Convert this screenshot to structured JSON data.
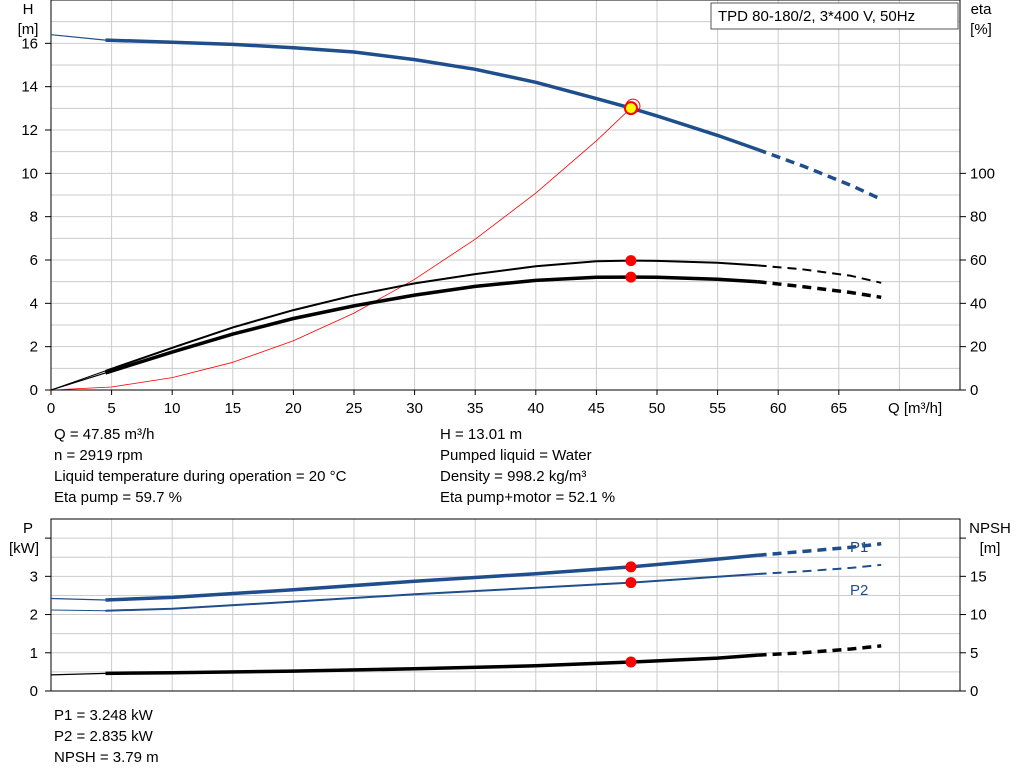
{
  "chart_data": [
    {
      "type": "line",
      "title": "TPD 80-180/2, 3*400 V, 50Hz",
      "xlabel": "Q [m³/h]",
      "ylabel_left": [
        "H",
        "[m]"
      ],
      "ylabel_right": [
        "eta",
        "[%]"
      ],
      "xlim": [
        0,
        75
      ],
      "ylim_left": [
        0,
        18
      ],
      "ylim_right": [
        0,
        180
      ],
      "x_ticks": [
        "0",
        "5",
        "10",
        "15",
        "20",
        "25",
        "30",
        "35",
        "40",
        "45",
        "50",
        "55",
        "60",
        "65"
      ],
      "y_ticks_left": [
        "0",
        "2",
        "4",
        "6",
        "8",
        "10",
        "12",
        "14",
        "16"
      ],
      "y_ticks_right": [
        "0",
        "20",
        "40",
        "60",
        "80",
        "100"
      ],
      "grid": true,
      "duty_point": {
        "q": 47.85,
        "h": 13.01,
        "eta_pump": 59.7,
        "eta_total": 52.1
      },
      "series": [
        {
          "key": "H",
          "x": [
            0,
            4.5,
            10,
            15,
            20,
            25,
            30,
            35,
            40,
            45,
            47.85,
            50,
            55,
            58.3,
            62,
            66,
            68.5
          ],
          "values": [
            16.4,
            16.15,
            16.05,
            15.95,
            15.8,
            15.6,
            15.25,
            14.8,
            14.2,
            13.45,
            13.01,
            12.65,
            11.75,
            11.1,
            10.35,
            9.45,
            8.8
          ]
        },
        {
          "key": "eta_pump",
          "x": [
            0,
            4.5,
            10,
            15,
            20,
            25,
            30,
            35,
            40,
            45,
            47.85,
            50,
            55,
            58.3,
            62,
            66,
            68.5
          ],
          "values": [
            0,
            8.8,
            19.5,
            28.9,
            36.9,
            43.7,
            49.2,
            53.5,
            57.1,
            59.4,
            59.7,
            59.6,
            58.7,
            57.5,
            55.7,
            52.7,
            49.5
          ]
        },
        {
          "key": "eta_total",
          "x": [
            0,
            4.5,
            10,
            15,
            20,
            25,
            30,
            35,
            40,
            45,
            47.85,
            50,
            55,
            58.3,
            62,
            66,
            68.5
          ],
          "values": [
            0,
            7.9,
            17.5,
            25.8,
            33.0,
            38.8,
            43.8,
            47.8,
            50.6,
            52.0,
            52.1,
            52.0,
            51.1,
            50.0,
            47.7,
            45.0,
            42.8
          ]
        },
        {
          "key": "system",
          "x": [
            0,
            5,
            10,
            15,
            20,
            25,
            30,
            35,
            40,
            45,
            47.85
          ],
          "values": [
            0,
            0.14,
            0.57,
            1.28,
            2.27,
            3.55,
            5.11,
            6.96,
            9.09,
            11.5,
            13.01
          ]
        }
      ]
    },
    {
      "type": "line",
      "xlim": [
        0,
        75
      ],
      "ylabel_left": [
        "P",
        "[kW]"
      ],
      "ylabel_right": [
        "NPSH",
        "[m]"
      ],
      "ylim_left": [
        0,
        4.5
      ],
      "ylim_right": [
        0,
        22.5
      ],
      "y_ticks_left": [
        "0",
        "1",
        "2",
        "3"
      ],
      "y_ticks_right": [
        "0",
        "5",
        "10",
        "15"
      ],
      "grid": true,
      "series": [
        {
          "name": "P1",
          "key": "P1",
          "x": [
            0,
            4.5,
            10,
            20,
            30,
            40,
            47.85,
            55,
            58.3,
            62,
            66,
            68.5
          ],
          "values": [
            2.42,
            2.38,
            2.45,
            2.65,
            2.87,
            3.07,
            3.248,
            3.45,
            3.55,
            3.65,
            3.76,
            3.85
          ]
        },
        {
          "name": "P2",
          "key": "P2",
          "x": [
            0,
            4.5,
            10,
            20,
            30,
            40,
            47.85,
            55,
            58.3,
            62,
            66,
            68.5
          ],
          "values": [
            2.12,
            2.1,
            2.15,
            2.34,
            2.53,
            2.7,
            2.835,
            2.99,
            3.06,
            3.13,
            3.22,
            3.3
          ]
        },
        {
          "key": "NPSH",
          "x": [
            0,
            4.5,
            10,
            20,
            30,
            40,
            47.85,
            55,
            58.3,
            62,
            66,
            68.5
          ],
          "values": [
            2.1,
            2.3,
            2.4,
            2.6,
            2.9,
            3.3,
            3.79,
            4.3,
            4.7,
            5.0,
            5.5,
            5.9
          ]
        }
      ]
    }
  ],
  "info_top": {
    "left": [
      "Q = 47.85 m³/h",
      "n = 2919 rpm",
      "Liquid temperature during operation = 20 °C",
      "Eta pump = 59.7 %"
    ],
    "right": [
      "H = 13.01 m",
      "Pumped liquid = Water",
      "Density = 998.2 kg/m³",
      "Eta pump+motor = 52.1 %"
    ]
  },
  "info_bottom": [
    "P1 = 3.248 kW",
    "P2 = 2.835 kW",
    "NPSH = 3.79 m"
  ],
  "colors": {
    "blue": "#1f4e8c",
    "black": "#000000",
    "red": "#ff0000",
    "grid": "#cccccc",
    "marker_fill": "#ffff00"
  }
}
